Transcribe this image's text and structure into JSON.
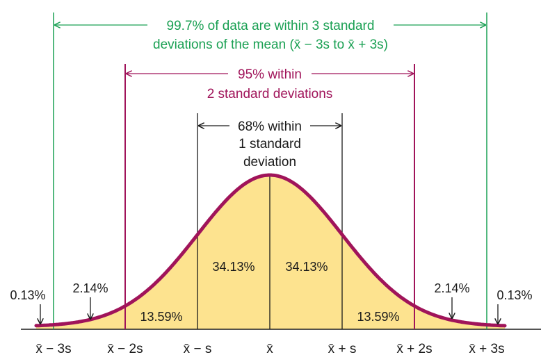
{
  "colors": {
    "fill": "#fde38f",
    "curve": "#a0145a",
    "green": "#1aa053",
    "magenta": "#a0145a",
    "black": "#1a1a1a"
  },
  "band3": {
    "line1": "99.7% of data are within 3 standard",
    "line2": "deviations of the mean (x̄ − 3s to x̄ + 3s)"
  },
  "band2": {
    "line1": "95% within",
    "line2": "2 standard deviations"
  },
  "band1": {
    "line1": "68% within",
    "line2": "1 standard",
    "line3": "deviation"
  },
  "regions": {
    "left_tail": "0.13%",
    "left_2_3": "2.14%",
    "left_1_2": "13.59%",
    "left_0_1": "34.13%",
    "right_0_1": "34.13%",
    "right_1_2": "13.59%",
    "right_2_3": "2.14%",
    "right_tail": "0.13%"
  },
  "ticks": [
    "x̄ − 3s",
    "x̄ − 2s",
    "x̄ − s",
    "x̄",
    "x̄ + s",
    "x̄ + 2s",
    "x̄ + 3s"
  ]
}
